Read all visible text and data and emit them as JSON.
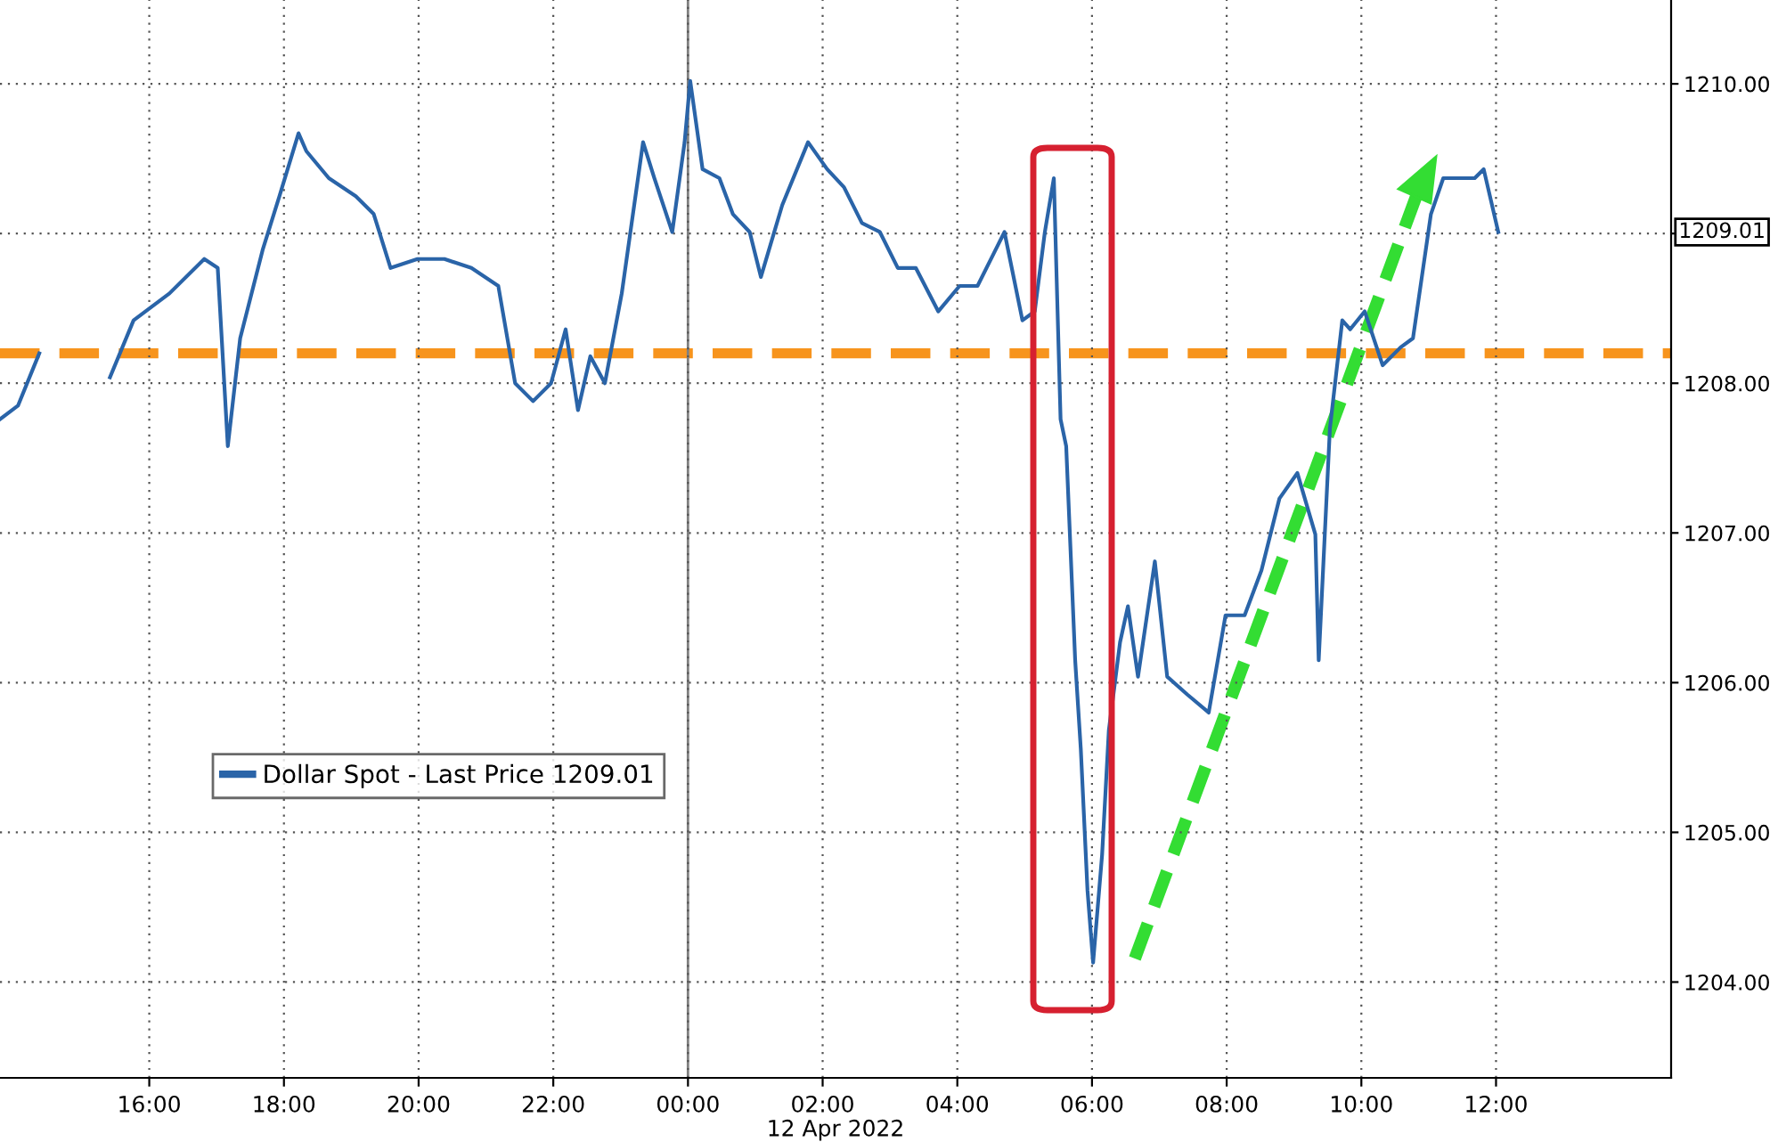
{
  "chart_data": {
    "type": "line",
    "xlabel": "12 Apr 2022",
    "x": [
      "2022-04-11T13:47",
      "2022-04-11T14:03",
      "2022-04-11T14:22",
      "2022-04-11T15:00",
      "2022-04-11T15:25",
      "2022-04-11T15:46",
      "2022-04-11T16:18",
      "2022-04-11T16:49",
      "2022-04-11T17:01",
      "2022-04-11T17:10",
      "2022-04-11T17:21",
      "2022-04-11T17:41",
      "2022-04-11T17:56",
      "2022-04-11T18:13",
      "2022-04-11T18:20",
      "2022-04-11T18:40",
      "2022-04-11T19:04",
      "2022-04-11T19:20",
      "2022-04-11T19:35",
      "2022-04-11T19:59",
      "2022-04-11T20:23",
      "2022-04-11T20:47",
      "2022-04-11T21:11",
      "2022-04-11T21:26",
      "2022-04-11T21:42",
      "2022-04-11T21:58",
      "2022-04-11T22:11",
      "2022-04-11T22:22",
      "2022-04-11T22:33",
      "2022-04-11T22:46",
      "2022-04-11T23:01",
      "2022-04-11T23:20",
      "2022-04-11T23:30",
      "2022-04-11T23:46",
      "2022-04-11T23:57",
      "2022-04-12T00:02",
      "2022-04-12T00:13",
      "2022-04-12T00:28",
      "2022-04-12T00:40",
      "2022-04-12T00:55",
      "2022-04-12T01:05",
      "2022-04-12T01:24",
      "2022-04-12T01:47",
      "2022-04-12T02:04",
      "2022-04-12T02:19",
      "2022-04-12T02:35",
      "2022-04-12T02:51",
      "2022-04-12T03:07",
      "2022-04-12T03:23",
      "2022-04-12T03:43",
      "2022-04-12T04:02",
      "2022-04-12T04:18",
      "2022-04-12T04:34",
      "2022-04-12T04:42",
      "2022-04-12T04:58",
      "2022-04-12T05:09",
      "2022-04-12T05:18",
      "2022-04-12T05:26",
      "2022-04-12T05:32",
      "2022-04-12T05:37",
      "2022-04-12T05:45",
      "2022-04-12T05:50",
      "2022-04-12T05:56",
      "2022-04-12T06:01",
      "2022-04-12T06:09",
      "2022-04-12T06:15",
      "2022-04-12T06:25",
      "2022-04-12T06:32",
      "2022-04-12T06:41",
      "2022-04-12T06:56",
      "2022-04-12T07:07",
      "2022-04-12T07:25",
      "2022-04-12T07:44",
      "2022-04-12T07:59",
      "2022-04-12T08:16",
      "2022-04-12T08:31",
      "2022-04-12T08:47",
      "2022-04-12T09:03",
      "2022-04-12T09:19",
      "2022-04-12T09:22",
      "2022-04-12T09:32",
      "2022-04-12T09:43",
      "2022-04-12T09:50",
      "2022-04-12T10:03",
      "2022-04-12T10:19",
      "2022-04-12T10:35",
      "2022-04-12T10:46",
      "2022-04-12T11:02",
      "2022-04-12T11:13",
      "2022-04-12T11:29",
      "2022-04-12T11:41",
      "2022-04-12T11:49",
      "2022-04-12T12:02"
    ],
    "series": [
      {
        "name": "Dollar Spot - Last Price 1209.01",
        "color": "#2a64a8",
        "values": [
          1207.76,
          1207.85,
          1208.2,
          null,
          1208.04,
          1208.42,
          1208.6,
          1208.83,
          1208.77,
          1207.58,
          1208.3,
          1208.89,
          1209.25,
          1209.67,
          1209.55,
          1209.37,
          1209.25,
          1209.13,
          1208.77,
          1208.83,
          1208.83,
          1208.77,
          1208.65,
          1208.0,
          1207.88,
          1208.0,
          1208.36,
          1207.82,
          1208.18,
          1208.0,
          1208.6,
          1209.61,
          1209.37,
          1209.01,
          1209.61,
          1210.02,
          1209.43,
          1209.37,
          1209.13,
          1209.01,
          1208.71,
          1209.19,
          1209.61,
          1209.43,
          1209.31,
          1209.07,
          1209.01,
          1208.77,
          1208.77,
          1208.48,
          1208.65,
          1208.65,
          1208.89,
          1209.01,
          1208.42,
          1208.48,
          1209.01,
          1209.37,
          1207.76,
          1207.58,
          1206.15,
          1205.56,
          1204.61,
          1204.13,
          1204.85,
          1205.68,
          1206.27,
          1206.51,
          1206.04,
          1206.81,
          1206.04,
          1205.92,
          1205.8,
          1206.45,
          1206.45,
          1206.75,
          1207.23,
          1207.4,
          1206.99,
          1206.15,
          1207.7,
          1208.42,
          1208.36,
          1208.48,
          1208.12,
          1208.24,
          1208.3,
          1209.13,
          1209.37,
          1209.37,
          1209.37,
          1209.43,
          1209.01
        ]
      }
    ],
    "xlim": [
      "2022-04-11T13:47",
      "2022-04-12T14:36"
    ],
    "xticks": [
      {
        "value": "2022-04-11T16:00",
        "label": "16:00"
      },
      {
        "value": "2022-04-11T18:00",
        "label": "18:00"
      },
      {
        "value": "2022-04-11T20:00",
        "label": "20:00"
      },
      {
        "value": "2022-04-11T22:00",
        "label": "22:00"
      },
      {
        "value": "2022-04-12T00:00",
        "label": "00:00"
      },
      {
        "value": "2022-04-12T02:00",
        "label": "02:00"
      },
      {
        "value": "2022-04-12T04:00",
        "label": "04:00"
      },
      {
        "value": "2022-04-12T06:00",
        "label": "06:00"
      },
      {
        "value": "2022-04-12T08:00",
        "label": "08:00"
      },
      {
        "value": "2022-04-12T10:00",
        "label": "10:00"
      },
      {
        "value": "2022-04-12T12:00",
        "label": "12:00"
      }
    ],
    "ylim": [
      1203.36,
      1210.56
    ],
    "yticks": [
      {
        "value": 1204,
        "label": "1204.00"
      },
      {
        "value": 1205,
        "label": "1205.00"
      },
      {
        "value": 1206,
        "label": "1206.00"
      },
      {
        "value": 1207,
        "label": "1207.00"
      },
      {
        "value": 1208,
        "label": "1208.00"
      },
      {
        "value": 1209,
        "label": null
      },
      {
        "value": 1210,
        "label": "1210.00"
      }
    ],
    "ref_lines": [
      {
        "axis": "y",
        "value": 1208.2,
        "color": "#f7941d",
        "line_style": "dashed"
      },
      {
        "axis": "x",
        "value": "2022-04-12T00:00",
        "color": "#808080",
        "line_style": "solid"
      }
    ],
    "annotations": [
      "1209.01"
    ],
    "grid": true,
    "legend": "left",
    "line_style": "solid",
    "marker": "none"
  }
}
